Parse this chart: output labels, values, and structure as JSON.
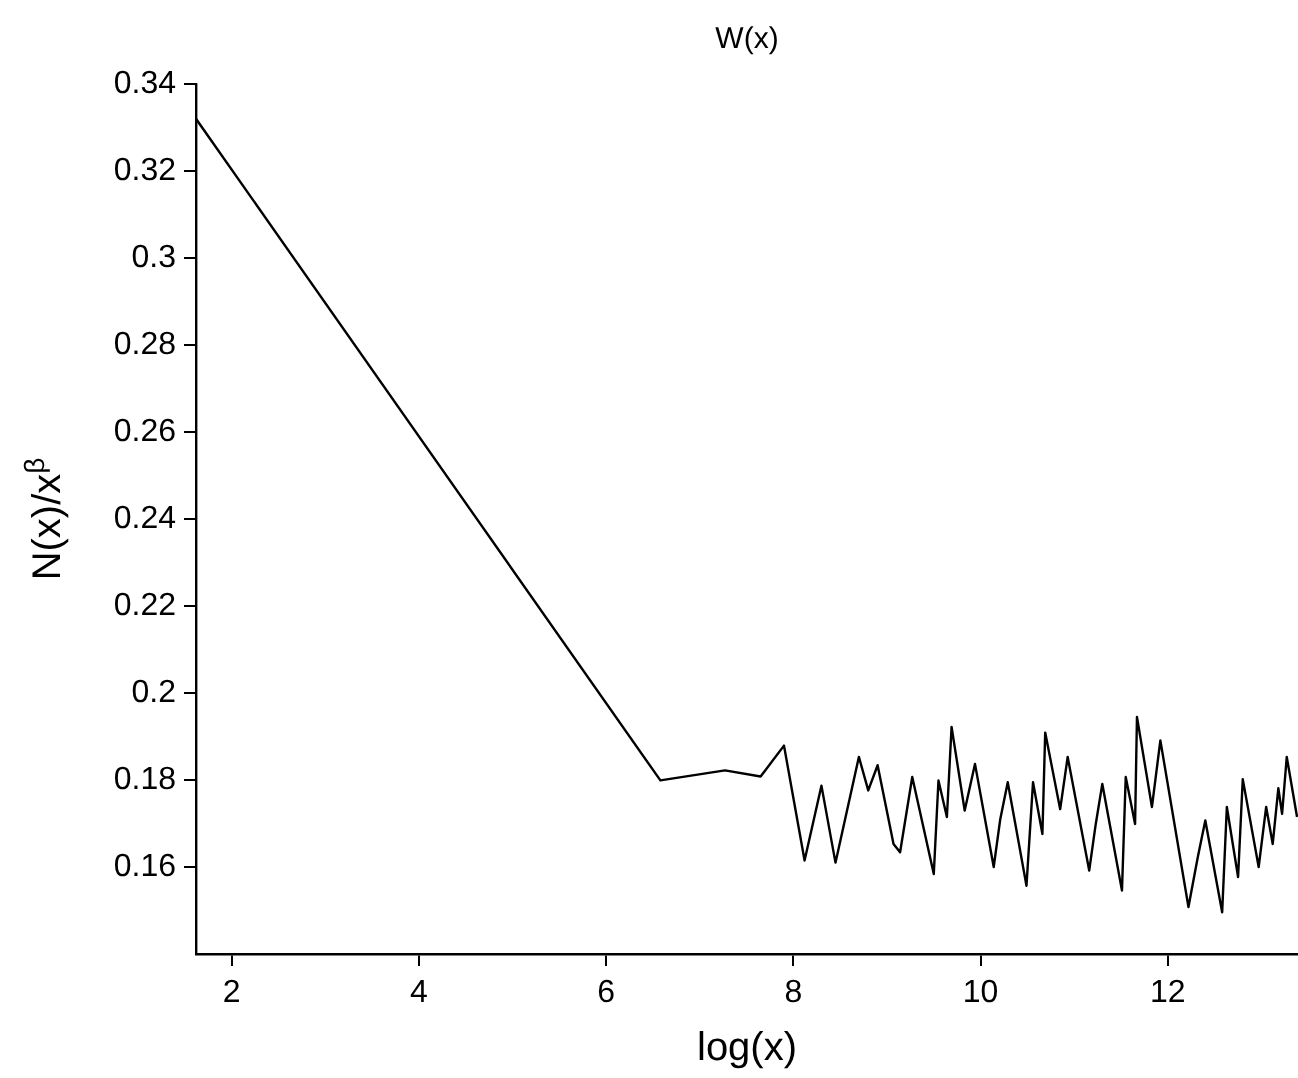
{
  "chart_data": {
    "type": "line",
    "title": "W(x)",
    "xlabel": "log(x)",
    "ylabel": "N(x)/x$^{β}$",
    "x": [
      1.62,
      6.58,
      7.27,
      7.65,
      7.9,
      8.12,
      8.3,
      8.45,
      8.7,
      8.8,
      8.9,
      9.07,
      9.14,
      9.27,
      9.5,
      9.55,
      9.64,
      9.69,
      9.83,
      9.94,
      10.14,
      10.21,
      10.29,
      10.49,
      10.56,
      10.66,
      10.69,
      10.85,
      10.93,
      11.16,
      11.23,
      11.3,
      11.51,
      11.55,
      11.65,
      11.67,
      11.83,
      11.92,
      12.22,
      12.32,
      12.4,
      12.58,
      12.63,
      12.75,
      12.8,
      12.97,
      13.05,
      13.12,
      13.18,
      13.22,
      13.27,
      13.38
    ],
    "series": [
      {
        "color": "#000000",
        "values": [
          0.332,
          0.1799,
          0.1822,
          0.1808,
          0.1879,
          0.1615,
          0.1787,
          0.161,
          0.1853,
          0.1776,
          0.1834,
          0.1653,
          0.1634,
          0.1807,
          0.1584,
          0.1799,
          0.1715,
          0.1922,
          0.173,
          0.1837,
          0.16,
          0.171,
          0.1795,
          0.1557,
          0.1795,
          0.1676,
          0.1909,
          0.1733,
          0.1853,
          0.1592,
          0.1699,
          0.1791,
          0.1546,
          0.1807,
          0.1699,
          0.1945,
          0.1738,
          0.1891,
          0.1508,
          0.1623,
          0.1707,
          0.1496,
          0.1738,
          0.1577,
          0.1802,
          0.16,
          0.1738,
          0.1653,
          0.1781,
          0.1722,
          0.1853,
          0.1715
        ]
      }
    ],
    "xlim": [
      1.62,
      13.39
    ],
    "xticks": [
      2,
      4,
      6,
      8,
      10,
      12
    ],
    "ylim": [
      0.14,
      0.34
    ],
    "yticks": [
      0.16,
      0.18,
      0.2,
      0.22,
      0.24,
      0.26,
      0.28,
      0.3,
      0.32,
      0.34
    ],
    "grid": false,
    "legend": false,
    "marker": "none",
    "line_style": "solid"
  }
}
